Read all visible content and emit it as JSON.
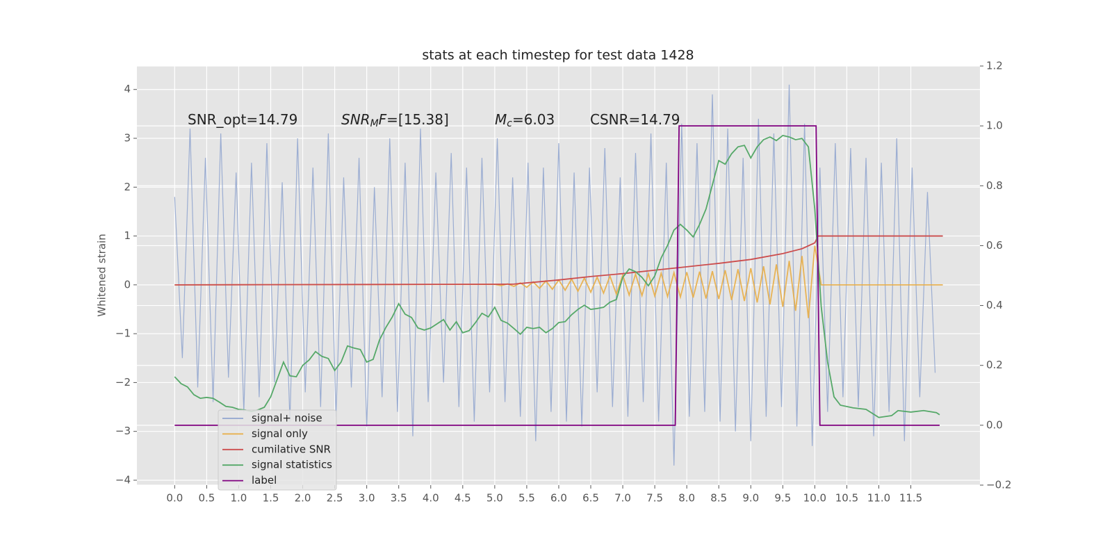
{
  "chart_data": {
    "type": "line",
    "title": "stats at each timestep for test data 1428",
    "y_label": "Whitened strain",
    "annotations": [
      [
        {
          "text": "SNR_opt=14.79",
          "style": "normal"
        }
      ],
      [
        {
          "text": "SNR",
          "style": "italic"
        },
        {
          "text": "M",
          "style": "italic-sub"
        },
        {
          "text": "F",
          "style": "italic"
        },
        {
          "text": "=[15.38]",
          "style": "normal"
        }
      ],
      [
        {
          "text": "M",
          "style": "italic"
        },
        {
          "text": "c",
          "style": "italic-sub"
        },
        {
          "text": "=6.03",
          "style": "normal"
        }
      ],
      [
        {
          "text": "CSNR=14.79",
          "style": "normal"
        }
      ]
    ],
    "xlim": [
      -0.59,
      12.58
    ],
    "ylim": [
      -4.1,
      4.48
    ],
    "y2lim": [
      -0.2,
      1.2
    ],
    "xticks": [
      {
        "value": 0,
        "label": "0.0"
      },
      0.5,
      {
        "value": 1,
        "label": "1.0"
      },
      1.5,
      {
        "value": 2,
        "label": "2.0"
      },
      2.5,
      {
        "value": 3,
        "label": "3.0"
      },
      3.5,
      {
        "value": 4,
        "label": "4.0"
      },
      4.5,
      {
        "value": 5,
        "label": "5.0"
      },
      5.5,
      {
        "value": 6,
        "label": "6.0"
      },
      6.5,
      {
        "value": 7,
        "label": "7.0"
      },
      7.5,
      {
        "value": 8,
        "label": "8.0"
      },
      8.5,
      {
        "value": 9,
        "label": "9.0"
      },
      9.5,
      {
        "value": 10,
        "label": "10.0"
      },
      10.5,
      {
        "value": 11,
        "label": "11.0"
      },
      11.5
    ],
    "yticks": [
      {
        "value": -4,
        "label": "−4"
      },
      {
        "value": -3,
        "label": "−3"
      },
      {
        "value": -2,
        "label": "−2"
      },
      {
        "value": -1,
        "label": "−1"
      },
      0,
      1,
      2,
      3,
      4
    ],
    "y2ticks": [
      {
        "value": -0.2,
        "label": "−0.2"
      },
      {
        "value": 0,
        "label": "0.0"
      },
      0.2,
      0.4,
      0.6,
      0.8,
      {
        "value": 1,
        "label": "1.0"
      },
      1.2
    ],
    "grid": true,
    "legend": "lower left",
    "series": [
      {
        "name": "signal+ noise",
        "color": "#92a6cf",
        "axis": "y",
        "x": [
          0,
          0.12,
          0.24,
          0.36,
          0.48,
          0.6,
          0.72,
          0.84,
          0.96,
          1.08,
          1.2,
          1.32,
          1.44,
          1.56,
          1.68,
          1.8,
          1.92,
          2.04,
          2.16,
          2.28,
          2.4,
          2.52,
          2.64,
          2.76,
          2.88,
          3,
          3.12,
          3.24,
          3.36,
          3.48,
          3.6,
          3.72,
          3.84,
          3.96,
          4.08,
          4.2,
          4.32,
          4.44,
          4.56,
          4.68,
          4.8,
          4.92,
          5.04,
          5.16,
          5.28,
          5.4,
          5.52,
          5.64,
          5.76,
          5.88,
          6,
          6.12,
          6.24,
          6.36,
          6.48,
          6.6,
          6.72,
          6.84,
          6.96,
          7.08,
          7.2,
          7.32,
          7.44,
          7.56,
          7.68,
          7.8,
          7.92,
          8.04,
          8.16,
          8.28,
          8.4,
          8.52,
          8.64,
          8.76,
          8.88,
          9,
          9.12,
          9.24,
          9.36,
          9.48,
          9.6,
          9.72,
          9.84,
          9.96,
          10.08,
          10.2,
          10.32,
          10.44,
          10.56,
          10.68,
          10.8,
          10.92,
          11.04,
          11.16,
          11.28,
          11.4,
          11.52,
          11.64,
          11.76,
          11.88
        ],
        "values": [
          1.8,
          -1.5,
          3.2,
          -2.1,
          2.6,
          -2.4,
          3.1,
          -1.9,
          2.3,
          -2.6,
          2.5,
          -2.3,
          2.9,
          -2.0,
          2.1,
          -2.8,
          3.0,
          -2.2,
          2.4,
          -2.5,
          3.1,
          -2.7,
          2.2,
          -2.1,
          2.6,
          -2.9,
          2.0,
          -2.3,
          3.0,
          -2.6,
          2.5,
          -3.1,
          3.2,
          -2.4,
          2.3,
          -2.0,
          2.7,
          -2.5,
          2.4,
          -2.8,
          2.6,
          -2.2,
          3.0,
          -2.4,
          2.2,
          -2.7,
          2.5,
          -3.2,
          2.4,
          -2.6,
          2.9,
          -2.8,
          2.3,
          -2.9,
          2.4,
          -2.2,
          2.8,
          -2.5,
          2.2,
          -2.7,
          2.7,
          -2.4,
          3.1,
          -2.8,
          2.5,
          -3.7,
          3.3,
          -2.7,
          2.9,
          -2.6,
          3.9,
          -2.8,
          3.2,
          -3.0,
          2.6,
          -3.2,
          3.4,
          -2.7,
          3.1,
          -2.5,
          4.1,
          -2.9,
          3.3,
          -3.3,
          2.4,
          -2.6,
          2.9,
          -2.3,
          2.8,
          -2.5,
          2.6,
          -3.1,
          2.5,
          -2.6,
          3.0,
          -3.2,
          2.4,
          -2.3,
          1.9,
          -1.8
        ]
      },
      {
        "name": "signal only",
        "color": "#e8ad45",
        "axis": "y",
        "x": [
          0,
          5.0,
          5.1,
          5.2,
          5.3,
          5.4,
          5.5,
          5.6,
          5.7,
          5.8,
          5.9,
          6.0,
          6.1,
          6.2,
          6.3,
          6.4,
          6.5,
          6.6,
          6.7,
          6.8,
          6.9,
          7.0,
          7.1,
          7.2,
          7.3,
          7.4,
          7.5,
          7.6,
          7.7,
          7.8,
          7.9,
          8.0,
          8.1,
          8.2,
          8.3,
          8.4,
          8.5,
          8.6,
          8.7,
          8.8,
          8.9,
          9.0,
          9.1,
          9.2,
          9.3,
          9.4,
          9.5,
          9.6,
          9.7,
          9.8,
          9.9,
          10.0,
          10.1,
          12.0
        ],
        "values": [
          0,
          0.01,
          -0.015,
          0.02,
          -0.03,
          0.04,
          -0.05,
          0.06,
          -0.07,
          0.08,
          -0.09,
          0.1,
          -0.11,
          0.12,
          -0.13,
          0.14,
          -0.15,
          0.16,
          -0.17,
          0.18,
          -0.19,
          0.2,
          -0.21,
          0.22,
          -0.22,
          0.23,
          -0.23,
          0.24,
          -0.24,
          0.25,
          -0.25,
          0.26,
          -0.26,
          0.27,
          -0.28,
          0.28,
          -0.29,
          0.3,
          -0.31,
          0.32,
          -0.33,
          0.34,
          -0.36,
          0.38,
          -0.4,
          0.42,
          -0.45,
          0.49,
          -0.53,
          0.59,
          -0.68,
          0.8,
          0,
          0
        ]
      },
      {
        "name": "cumilative SNR",
        "color": "#cc4c4c",
        "axis": "y",
        "x": [
          0,
          1,
          2,
          3,
          4,
          5,
          5.3,
          5.5,
          6,
          6.5,
          7,
          7.5,
          8,
          8.5,
          9,
          9.5,
          9.8,
          10,
          10.05,
          12
        ],
        "values": [
          0,
          0.002,
          0.005,
          0.008,
          0.01,
          0.012,
          0.015,
          0.04,
          0.1,
          0.17,
          0.23,
          0.3,
          0.37,
          0.44,
          0.52,
          0.64,
          0.74,
          0.86,
          1.0,
          1.0
        ]
      },
      {
        "name": "signal statistics",
        "color": "#55a868",
        "axis": "y2",
        "x": [
          0.0,
          0.1,
          0.2,
          0.3,
          0.4,
          0.5,
          0.6,
          0.7,
          0.8,
          0.9,
          1.0,
          1.1,
          1.2,
          1.3,
          1.4,
          1.5,
          1.6,
          1.7,
          1.8,
          1.9,
          2.0,
          2.1,
          2.2,
          2.3,
          2.4,
          2.5,
          2.6,
          2.7,
          2.8,
          2.9,
          3.0,
          3.1,
          3.2,
          3.3,
          3.4,
          3.5,
          3.6,
          3.7,
          3.8,
          3.9,
          4.0,
          4.1,
          4.2,
          4.3,
          4.4,
          4.5,
          4.6,
          4.7,
          4.8,
          4.9,
          5.0,
          5.1,
          5.2,
          5.3,
          5.4,
          5.5,
          5.6,
          5.7,
          5.8,
          5.9,
          6.0,
          6.1,
          6.2,
          6.3,
          6.4,
          6.5,
          6.6,
          6.7,
          6.8,
          6.9,
          7.0,
          7.1,
          7.2,
          7.3,
          7.4,
          7.5,
          7.6,
          7.7,
          7.8,
          7.9,
          8.0,
          8.1,
          8.2,
          8.3,
          8.4,
          8.5,
          8.6,
          8.7,
          8.8,
          8.9,
          9.0,
          9.1,
          9.2,
          9.3,
          9.4,
          9.5,
          9.6,
          9.7,
          9.8,
          9.9,
          10.0,
          10.1,
          10.2,
          10.3,
          10.4,
          10.6,
          10.8,
          11.0,
          11.2,
          11.3,
          11.5,
          11.7,
          11.9,
          11.95
        ],
        "values": [
          0.162,
          0.139,
          0.128,
          0.102,
          0.09,
          0.093,
          0.09,
          0.077,
          0.063,
          0.06,
          0.053,
          0.051,
          0.046,
          0.051,
          0.06,
          0.095,
          0.153,
          0.211,
          0.165,
          0.162,
          0.2,
          0.218,
          0.246,
          0.23,
          0.223,
          0.183,
          0.211,
          0.265,
          0.258,
          0.253,
          0.211,
          0.22,
          0.285,
          0.327,
          0.362,
          0.406,
          0.371,
          0.36,
          0.325,
          0.318,
          0.325,
          0.339,
          0.353,
          0.318,
          0.346,
          0.309,
          0.316,
          0.343,
          0.374,
          0.362,
          0.394,
          0.35,
          0.341,
          0.323,
          0.304,
          0.327,
          0.323,
          0.327,
          0.309,
          0.323,
          0.343,
          0.346,
          0.369,
          0.387,
          0.401,
          0.387,
          0.39,
          0.394,
          0.411,
          0.42,
          0.494,
          0.522,
          0.513,
          0.494,
          0.466,
          0.499,
          0.559,
          0.601,
          0.652,
          0.671,
          0.652,
          0.629,
          0.671,
          0.722,
          0.803,
          0.884,
          0.872,
          0.907,
          0.93,
          0.935,
          0.893,
          0.93,
          0.954,
          0.963,
          0.951,
          0.968,
          0.963,
          0.954,
          0.958,
          0.93,
          0.722,
          0.397,
          0.211,
          0.095,
          0.067,
          0.058,
          0.053,
          0.026,
          0.032,
          0.049,
          0.044,
          0.049,
          0.042,
          0.035
        ]
      },
      {
        "name": "label",
        "color": "#800080",
        "axis": "y2",
        "x": [
          0,
          7.82,
          7.88,
          10.02,
          10.08,
          11.95
        ],
        "values": [
          0,
          0,
          1,
          1,
          0,
          0
        ]
      }
    ]
  }
}
